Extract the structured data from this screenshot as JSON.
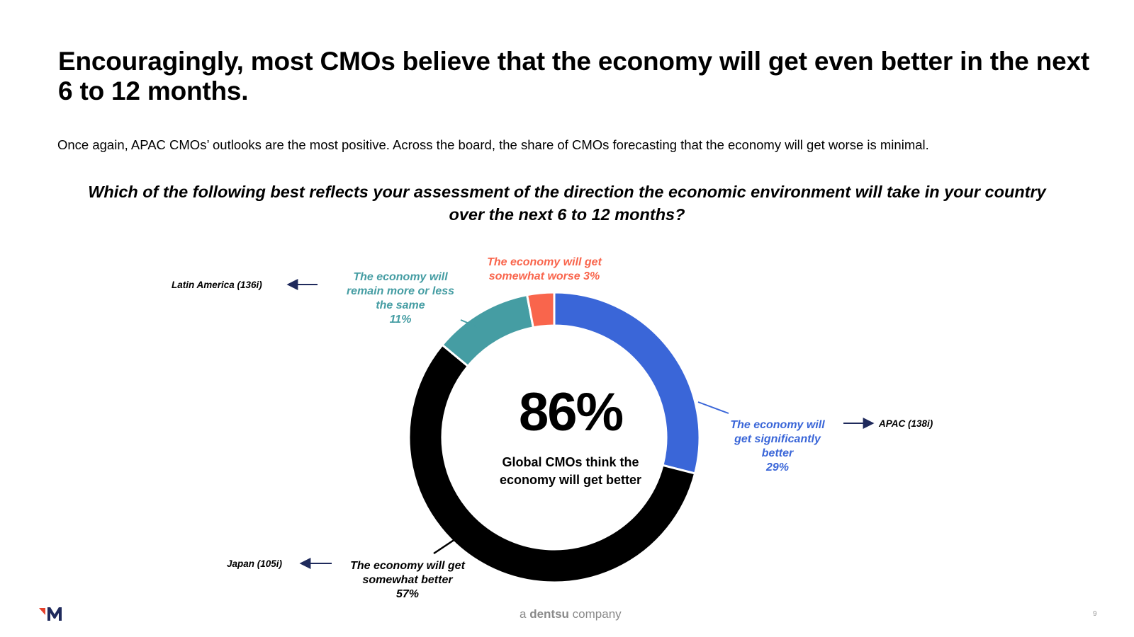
{
  "slide": {
    "title": "Encouragingly, most CMOs believe that the economy will get even better in the next 6 to 12 months.",
    "subtitle": "Once again, APAC CMOs’ outlooks are the most positive. Across the board, the share of CMOs forecasting that the economy will get worse is minimal.",
    "question": "Which of the following best reflects your assessment of the direction the economic environment will take in your country over the next 6 to 12 months?",
    "page_number": "9",
    "brand_prefix": "a",
    "brand_name": "dentsu",
    "brand_suffix": "company"
  },
  "center": {
    "value": "86%",
    "caption": "Global CMOs think the economy will get better"
  },
  "colors": {
    "significantly_better": "#3A66D8",
    "somewhat_better": "#000000",
    "same": "#459DA3",
    "somewhat_worse": "#F9654C",
    "arrow": "#1F2A5C"
  },
  "labels": {
    "significantly_better": [
      "The economy will",
      "get significantly",
      "better",
      "29%"
    ],
    "somewhat_better": [
      "The economy will get",
      "somewhat better",
      "57%"
    ],
    "same": [
      "The economy will",
      "remain more or less",
      "the same",
      "11%"
    ],
    "somewhat_worse": [
      "The economy will get",
      "somewhat worse 3%"
    ]
  },
  "regions": {
    "apac": "APAC (138i)",
    "japan": "Japan (105i)",
    "latam": "Latin America (136i)"
  },
  "chart_data": {
    "type": "pie",
    "title": "Which of the following best reflects your assessment of the direction the economic environment will take in your country over the next 6 to 12 months?",
    "categories": [
      "The economy will get significantly better",
      "The economy will get somewhat better",
      "The economy will remain more or less the same",
      "The economy will get somewhat worse"
    ],
    "values": [
      29,
      57,
      11,
      3
    ],
    "unit": "%",
    "donut": true,
    "center_label": "86%",
    "annotations": [
      {
        "category": "The economy will get significantly better",
        "text": "APAC (138i)"
      },
      {
        "category": "The economy will get somewhat better",
        "text": "Japan (105i)"
      },
      {
        "category": "The economy will remain more or less the same",
        "text": "Latin America (136i)"
      }
    ]
  }
}
